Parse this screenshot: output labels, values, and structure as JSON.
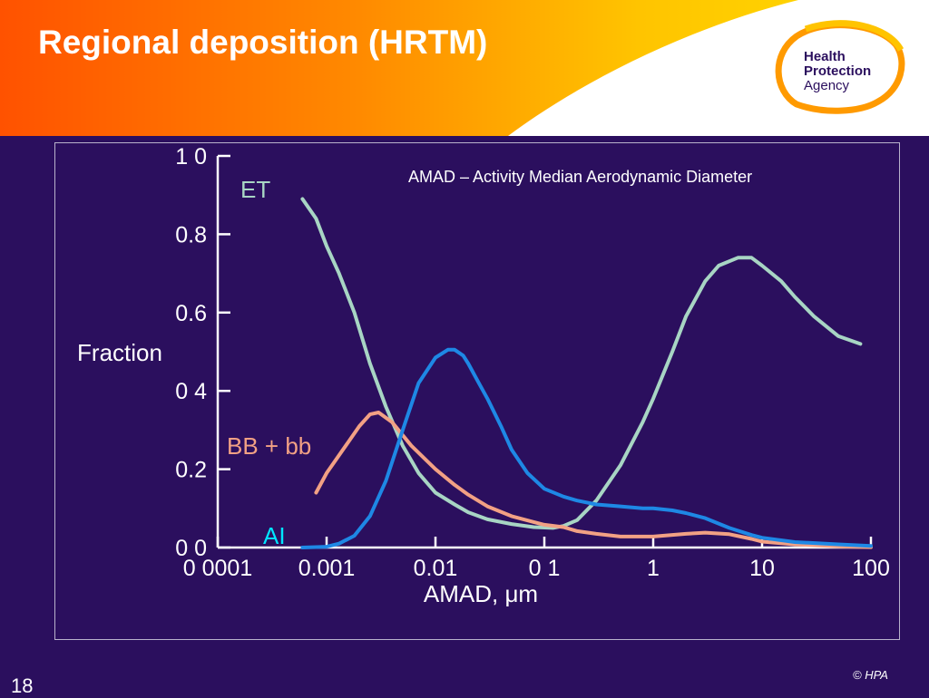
{
  "slide": {
    "title": "Regional deposition (HRTM)",
    "number": "18",
    "copyright": "© HPA"
  },
  "logo": {
    "line1": "Health",
    "line2": "Protection",
    "line3": "Agency"
  },
  "colors": {
    "background": "#2b0f5e",
    "header_gradient_start": "#ff5a00",
    "header_gradient_end": "#ffcc00",
    "et": "#a8d5c4",
    "bb": "#f2a184",
    "ai": "#1e88e5",
    "ai_label": "#00e5ff",
    "axis": "#ffffff"
  },
  "chart_data": {
    "type": "line",
    "title": "",
    "annotation": "AMAD – Activity Median Aerodynamic Diameter",
    "xlabel": "AMAD,  μm",
    "ylabel": "Fraction",
    "x_scale": "log",
    "xlim": [
      0.0001,
      100
    ],
    "ylim": [
      0,
      1.0
    ],
    "x_tick_values": [
      0.0001,
      0.001,
      0.01,
      0.1,
      1,
      10,
      100
    ],
    "x_tick_labels": [
      "0 0001",
      "0.001",
      "0.01",
      "0 1",
      "1",
      "10",
      "100"
    ],
    "y_tick_values": [
      0,
      0.2,
      0.4,
      0.6,
      0.8,
      1.0
    ],
    "y_tick_labels": [
      "0 0",
      "0.2",
      "0 4",
      "0.6",
      "0.8",
      "1 0"
    ],
    "grid": false,
    "legend": "inline labels",
    "series": [
      {
        "name": "ET",
        "x": [
          0.0006,
          0.0008,
          0.001,
          0.0013,
          0.0018,
          0.0025,
          0.0035,
          0.005,
          0.007,
          0.01,
          0.015,
          0.02,
          0.03,
          0.05,
          0.08,
          0.12,
          0.15,
          0.2,
          0.3,
          0.5,
          0.8,
          1,
          1.5,
          2,
          3,
          4,
          6,
          8,
          10,
          15,
          20,
          30,
          50,
          80
        ],
        "y": [
          0.89,
          0.84,
          0.77,
          0.7,
          0.6,
          0.47,
          0.36,
          0.26,
          0.19,
          0.14,
          0.11,
          0.09,
          0.072,
          0.06,
          0.052,
          0.05,
          0.055,
          0.07,
          0.12,
          0.21,
          0.32,
          0.38,
          0.5,
          0.59,
          0.68,
          0.72,
          0.74,
          0.74,
          0.72,
          0.68,
          0.64,
          0.59,
          0.54,
          0.52
        ]
      },
      {
        "name": "BB + bb",
        "x": [
          0.0008,
          0.001,
          0.0015,
          0.002,
          0.0025,
          0.003,
          0.004,
          0.006,
          0.01,
          0.015,
          0.02,
          0.03,
          0.05,
          0.08,
          0.1,
          0.15,
          0.2,
          0.3,
          0.5,
          1,
          2,
          3,
          5,
          8,
          10,
          20,
          50,
          100
        ],
        "y": [
          0.14,
          0.19,
          0.26,
          0.31,
          0.34,
          0.345,
          0.32,
          0.26,
          0.2,
          0.16,
          0.135,
          0.105,
          0.08,
          0.065,
          0.058,
          0.052,
          0.042,
          0.035,
          0.028,
          0.028,
          0.035,
          0.038,
          0.034,
          0.022,
          0.015,
          0.008,
          0.003,
          0.001
        ]
      },
      {
        "name": "AI",
        "x": [
          0.0006,
          0.001,
          0.0013,
          0.0018,
          0.0025,
          0.0035,
          0.005,
          0.007,
          0.01,
          0.013,
          0.015,
          0.018,
          0.02,
          0.025,
          0.03,
          0.04,
          0.05,
          0.07,
          0.1,
          0.15,
          0.2,
          0.3,
          0.5,
          0.8,
          1,
          1.5,
          2,
          3,
          5,
          8,
          10,
          20,
          50,
          100
        ],
        "y": [
          0.0,
          0.002,
          0.01,
          0.03,
          0.08,
          0.17,
          0.3,
          0.42,
          0.485,
          0.505,
          0.505,
          0.49,
          0.47,
          0.42,
          0.38,
          0.31,
          0.25,
          0.19,
          0.15,
          0.13,
          0.12,
          0.11,
          0.105,
          0.1,
          0.1,
          0.095,
          0.088,
          0.075,
          0.05,
          0.032,
          0.025,
          0.014,
          0.008,
          0.004
        ]
      }
    ]
  }
}
